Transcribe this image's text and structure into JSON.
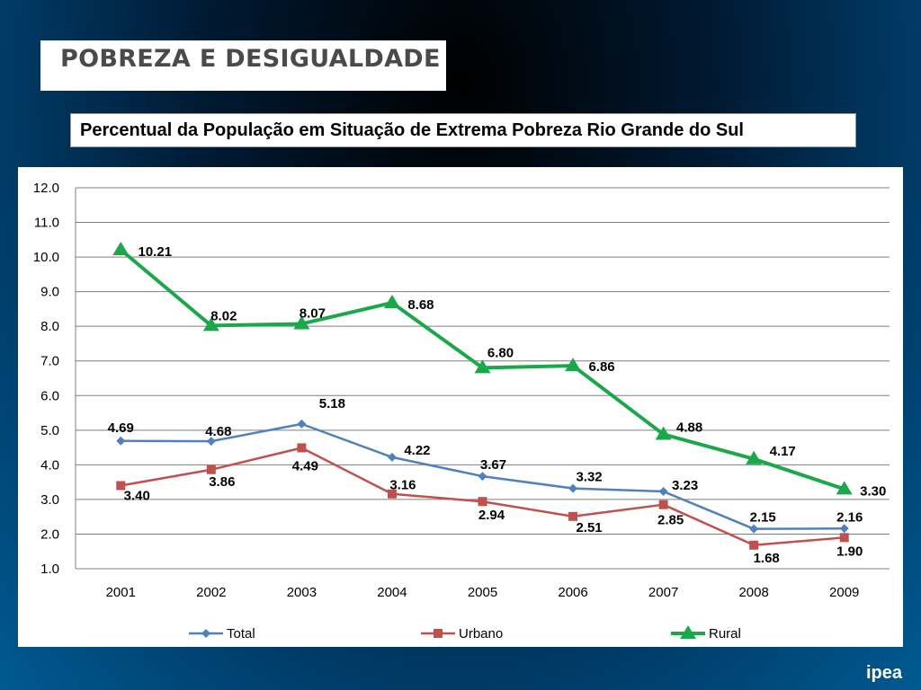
{
  "header": {
    "title": "POBREZA E DESIGUALDADE",
    "subtitle": "Percentual da População em Situação de Extrema Pobreza  Rio Grande do Sul"
  },
  "logo": {
    "text": "ipea"
  },
  "colors": {
    "total": "#4f81bd",
    "urbano": "#c0504d",
    "rural": "#1ba84b",
    "grid": "#7f7f7f"
  },
  "chart_data": {
    "type": "line",
    "categories": [
      "2001",
      "2002",
      "2003",
      "2004",
      "2005",
      "2006",
      "2007",
      "2008",
      "2009"
    ],
    "ylim": [
      1.0,
      12.0
    ],
    "yticks": [
      "1.0",
      "2.0",
      "3.0",
      "4.0",
      "5.0",
      "6.0",
      "7.0",
      "8.0",
      "9.0",
      "10.0",
      "11.0",
      "12.0"
    ],
    "grid": true,
    "legend_position": "bottom",
    "series": [
      {
        "name": "Total",
        "color": "#4f81bd",
        "marker": "diamond",
        "values": [
          4.69,
          4.68,
          5.18,
          4.22,
          3.67,
          3.32,
          3.23,
          2.15,
          2.16
        ],
        "labels": [
          "4.69",
          "4.68",
          "5.18",
          "4.22",
          "3.67",
          "3.32",
          "3.23",
          "2.15",
          "2.16"
        ]
      },
      {
        "name": "Urbano",
        "color": "#c0504d",
        "marker": "square",
        "values": [
          3.4,
          3.86,
          4.49,
          3.16,
          2.94,
          2.51,
          2.85,
          1.68,
          1.9
        ],
        "labels": [
          "3.40",
          "3.86",
          "4.49",
          "3.16",
          "2.94",
          "2.51",
          "2.85",
          "1.68",
          "1.90"
        ]
      },
      {
        "name": "Rural",
        "color": "#1ba84b",
        "marker": "triangle",
        "values": [
          10.21,
          8.02,
          8.07,
          8.68,
          6.8,
          6.86,
          4.88,
          4.17,
          3.3
        ],
        "labels": [
          "10.21",
          "8.02",
          "8.07",
          "8.68",
          "6.80",
          "6.86",
          "4.88",
          "4.17",
          "3.30"
        ]
      }
    ]
  }
}
